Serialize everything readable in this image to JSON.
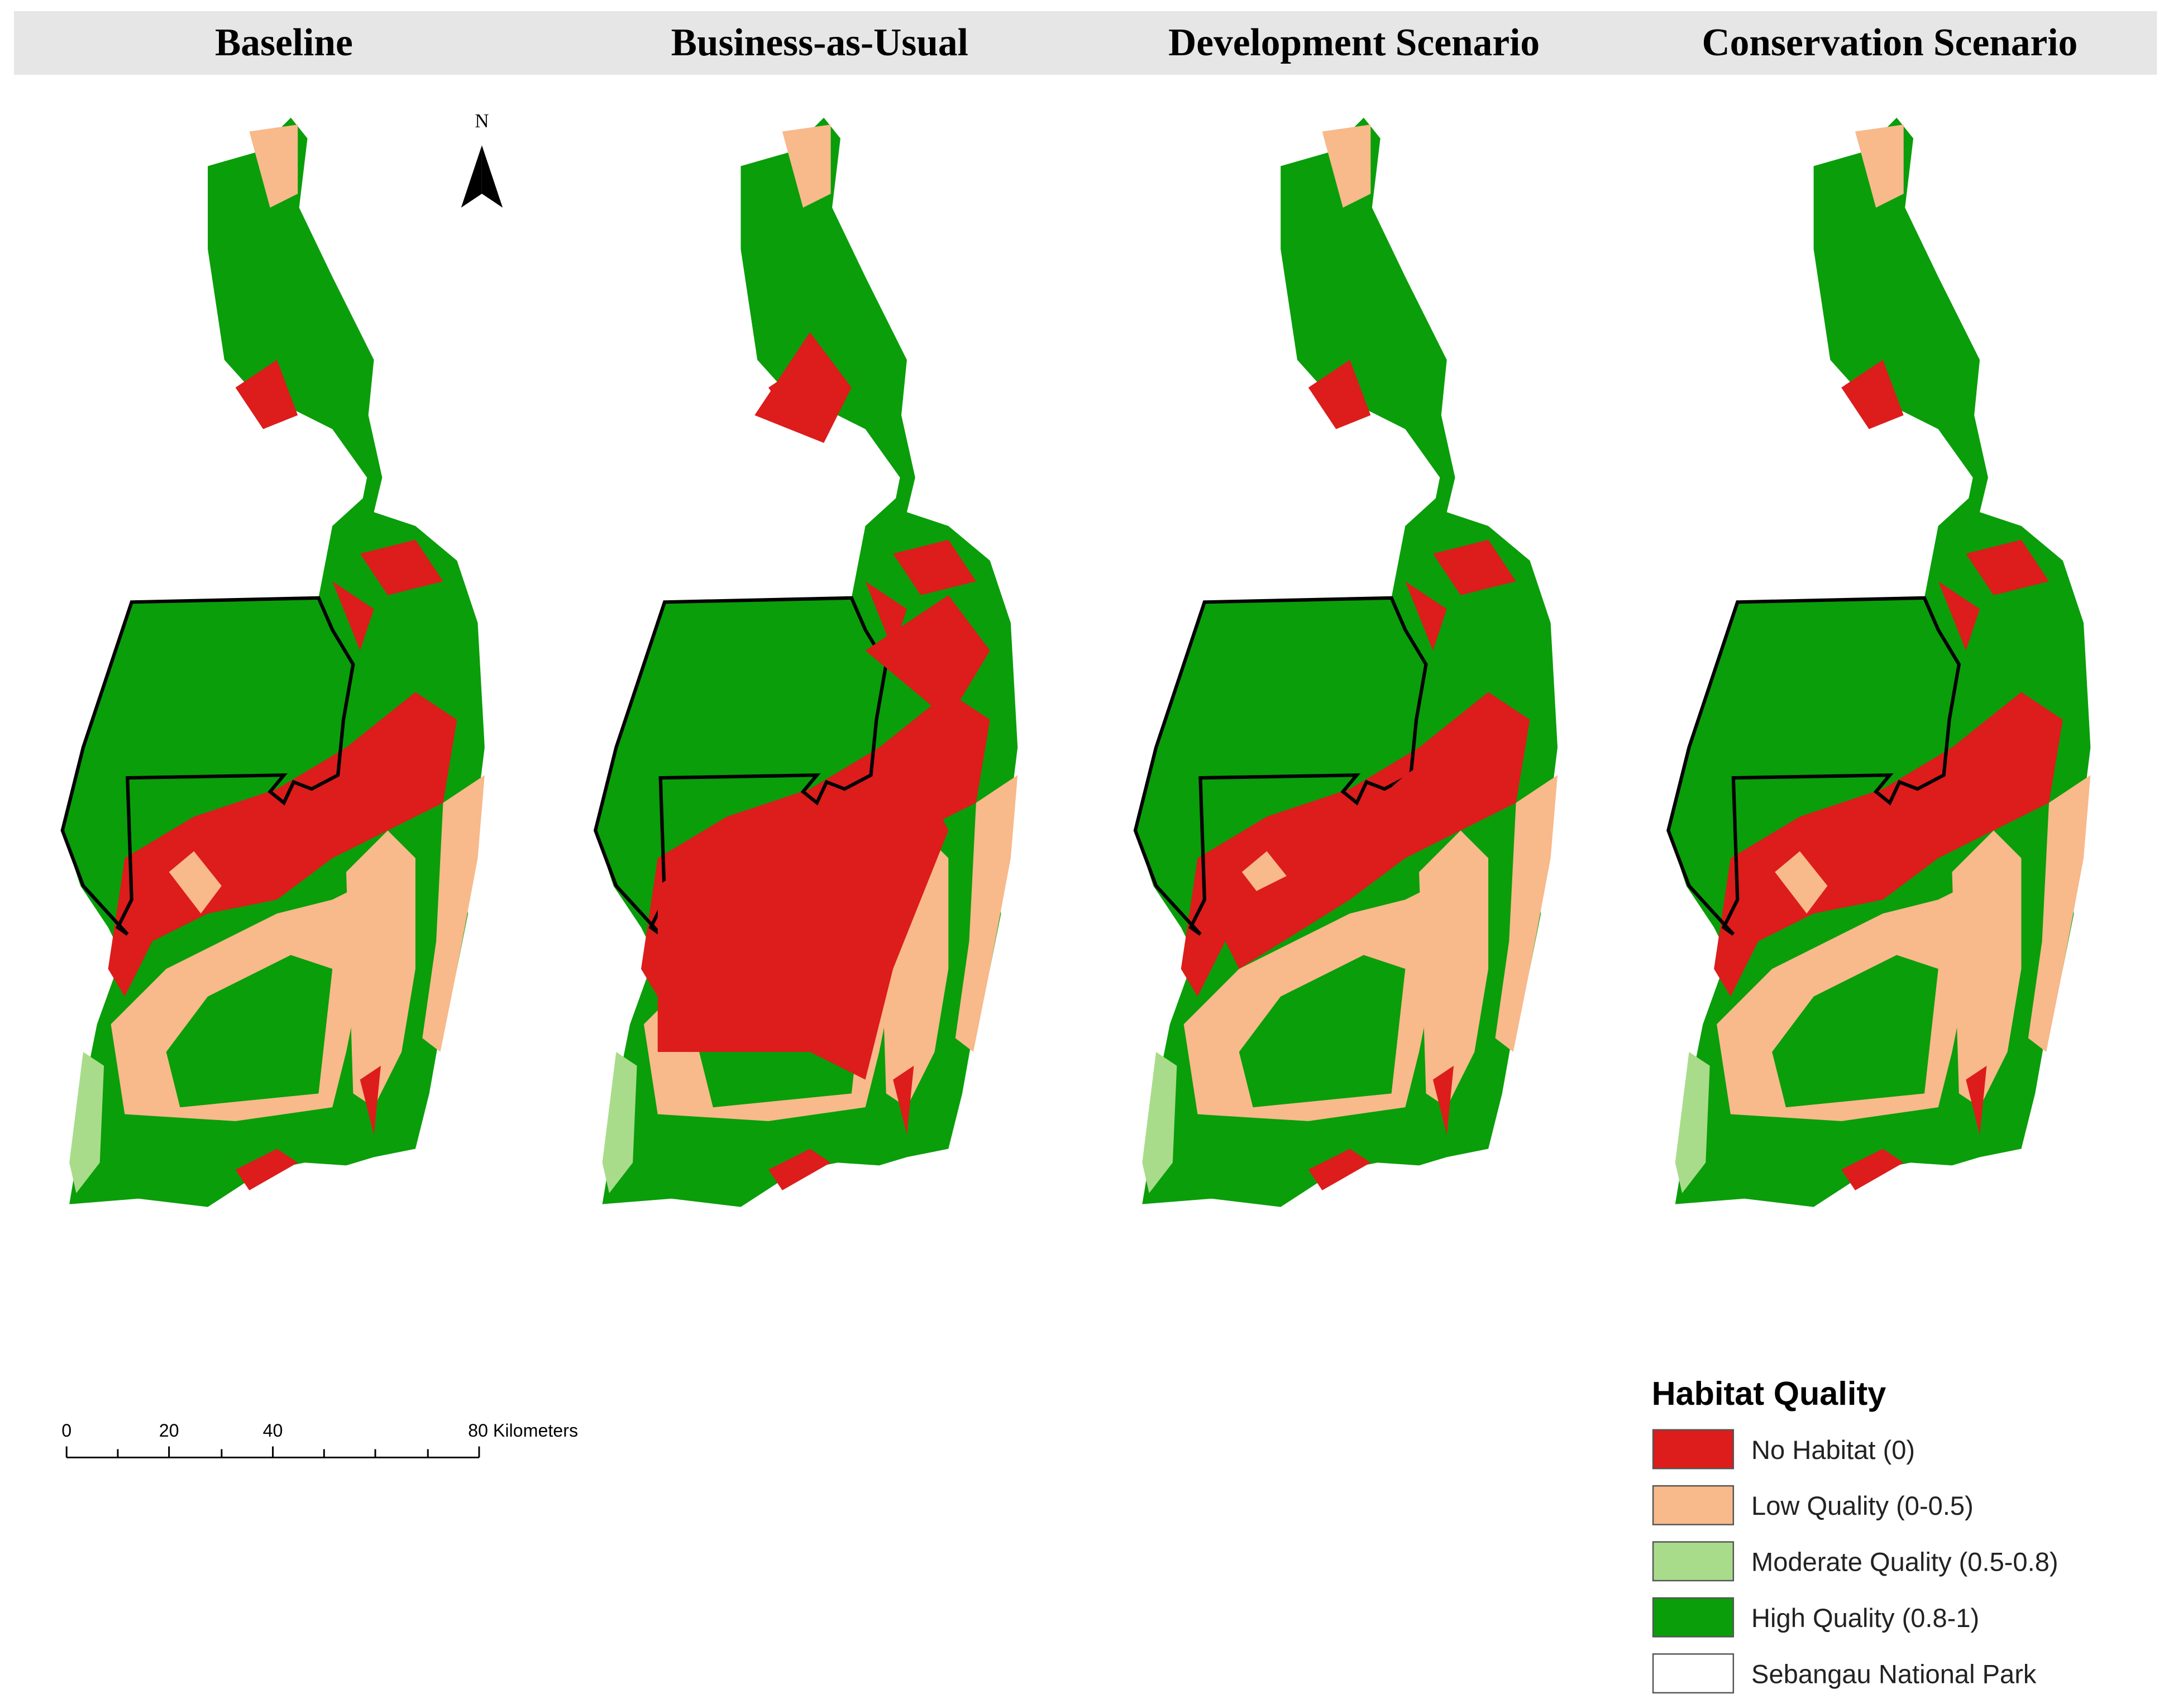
{
  "panels": [
    {
      "title": "Baseline"
    },
    {
      "title": "Business-as-Usual"
    },
    {
      "title": "Development Scenario"
    },
    {
      "title": "Conservation Scenario"
    }
  ],
  "north_arrow": {
    "label": "N"
  },
  "scale_bar": {
    "labels": [
      "0",
      "20",
      "40",
      "80 Kilometers"
    ]
  },
  "legend": {
    "title": "Habitat Quality",
    "items": [
      {
        "label": "No Habitat (0)",
        "color": "#dd1c1c"
      },
      {
        "label": "Low Quality (0-0.5)",
        "color": "#f8b98b"
      },
      {
        "label": "Moderate Quality (0.5-0.8)",
        "color": "#a8dc8a"
      },
      {
        "label": "High Quality (0.8-1)",
        "color": "#0a9e0a"
      },
      {
        "label": "Sebangau National Park",
        "color": "#ffffff"
      }
    ]
  }
}
